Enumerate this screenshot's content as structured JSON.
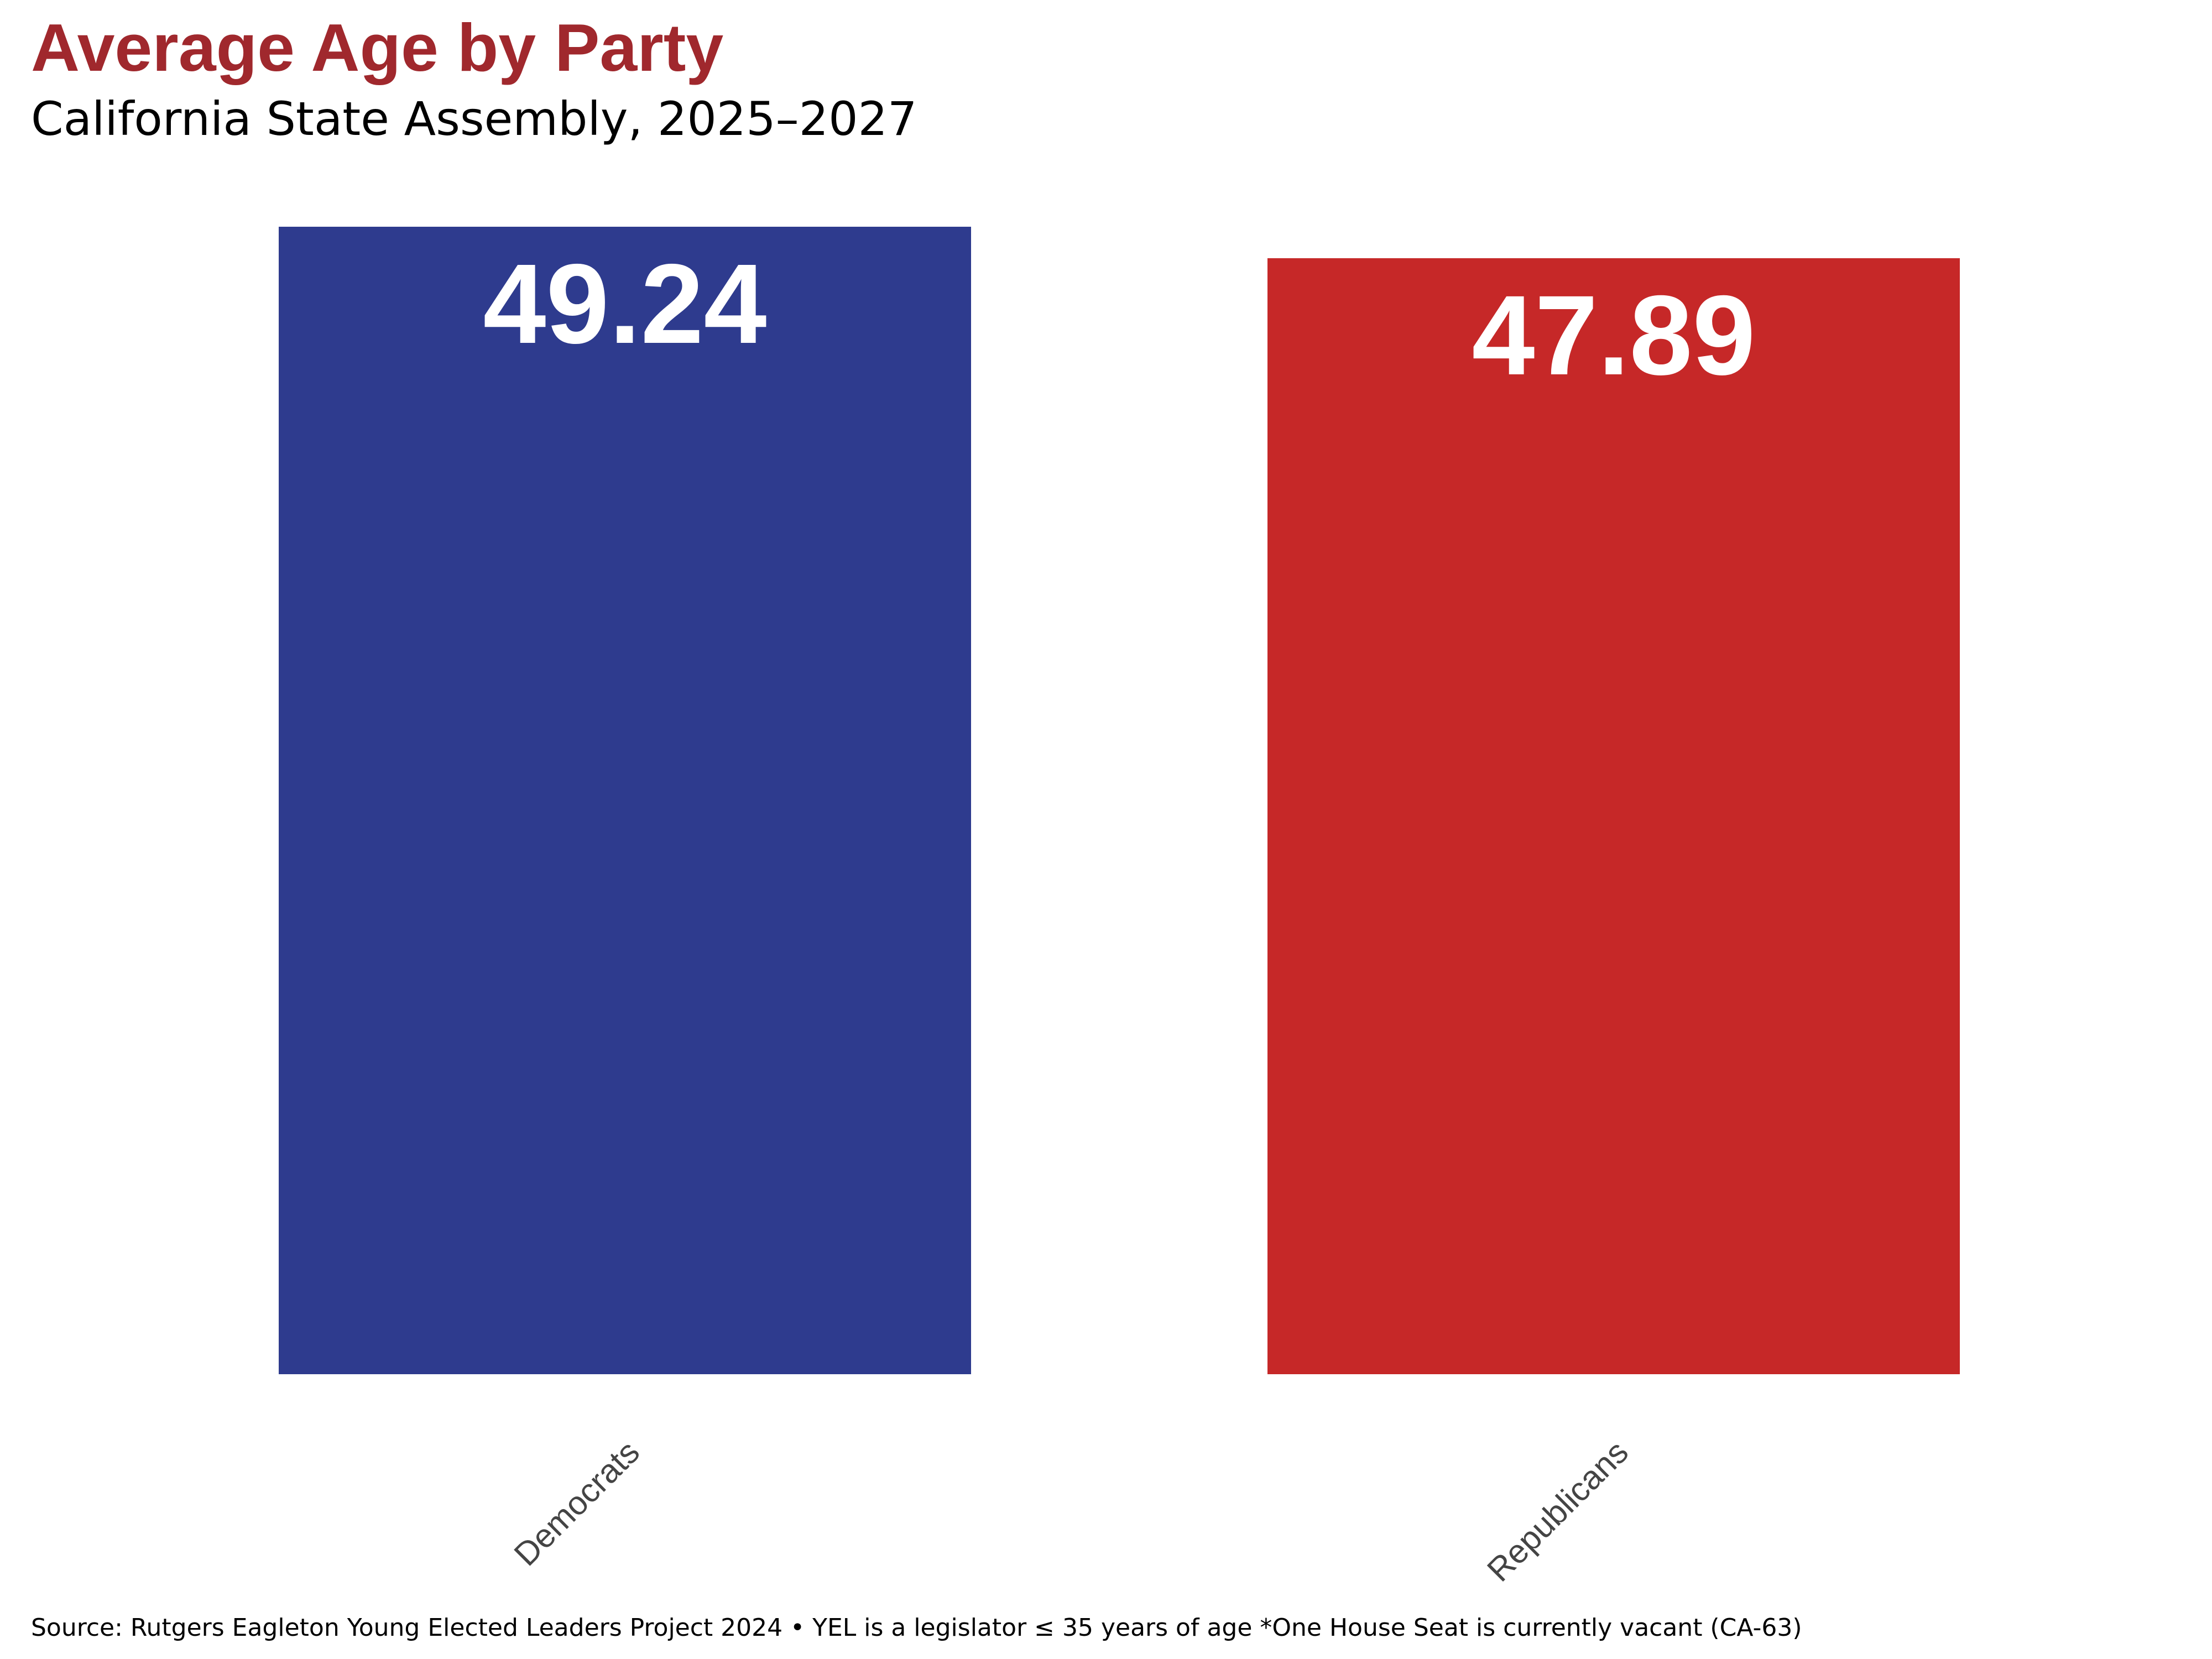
{
  "chart_data": {
    "type": "bar",
    "title": "Average Age by Party",
    "subtitle": "California State Assembly, 2025–2027",
    "caption": "Source: Rutgers Eagleton Young Elected Leaders Project 2024 • YEL is a legislator ≤ 35 years of age *One House Seat is currently vacant (CA-63)",
    "categories": [
      "Democrats",
      "Republicans"
    ],
    "values": [
      49.24,
      47.89
    ],
    "value_labels": [
      "49.24",
      "47.89"
    ],
    "colors": [
      "#2E3B8E",
      "#C62828"
    ],
    "xlabel": "",
    "ylabel": "",
    "ylim": [
      0,
      49.24
    ],
    "grid": false,
    "legend": "none"
  }
}
